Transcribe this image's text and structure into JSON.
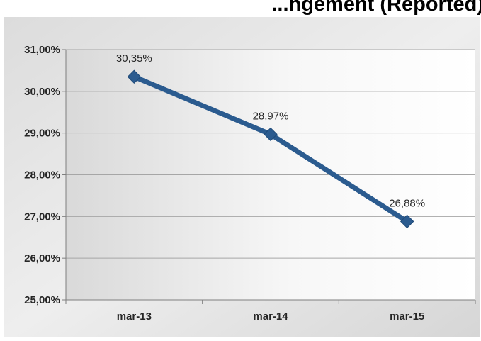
{
  "chart_data": {
    "type": "line",
    "title": "...ngement (Reported)",
    "xlabel": "",
    "ylabel": "",
    "categories": [
      "mar-13",
      "mar-14",
      "mar-15"
    ],
    "series": [
      {
        "values": [
          30.35,
          28.97,
          26.88
        ],
        "labels": [
          "30,35%",
          "28,97%",
          "26,88%"
        ],
        "color": "#2b5b8f",
        "marker": "diamond"
      }
    ],
    "ylim": [
      25,
      31
    ],
    "yticks": [
      25,
      26,
      27,
      28,
      29,
      30,
      31
    ],
    "ytick_labels": [
      "25,00%",
      "26,00%",
      "27,00%",
      "28,00%",
      "29,00%",
      "30,00%",
      "31,00%"
    ],
    "grid": true,
    "legend": "none"
  }
}
